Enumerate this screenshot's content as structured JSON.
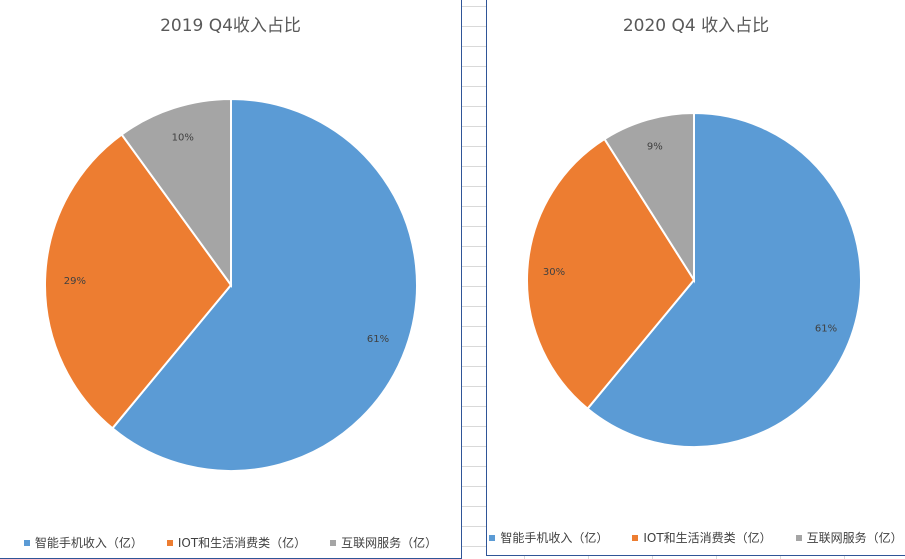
{
  "chart_data": [
    {
      "type": "pie",
      "title": "2019 Q4收入占比",
      "categories": [
        "智能手机收入（亿）",
        "IOT和生活消费类（亿）",
        "互联网服务（亿）"
      ],
      "values": [
        61,
        29,
        10
      ],
      "data_labels": [
        "61%",
        "29%",
        "10%"
      ],
      "colors": [
        "#5b9bd5",
        "#ed7d31",
        "#a5a5a5"
      ],
      "legend": "bottom"
    },
    {
      "type": "pie",
      "title": "2020 Q4 收入占比",
      "categories": [
        "智能手机收入（亿）",
        "IOT和生活消费类（亿）",
        "互联网服务（亿）"
      ],
      "values": [
        61,
        30,
        9
      ],
      "data_labels": [
        "61%",
        "30%",
        "9%"
      ],
      "colors": [
        "#5b9bd5",
        "#ed7d31",
        "#a5a5a5"
      ],
      "legend": "bottom"
    }
  ]
}
